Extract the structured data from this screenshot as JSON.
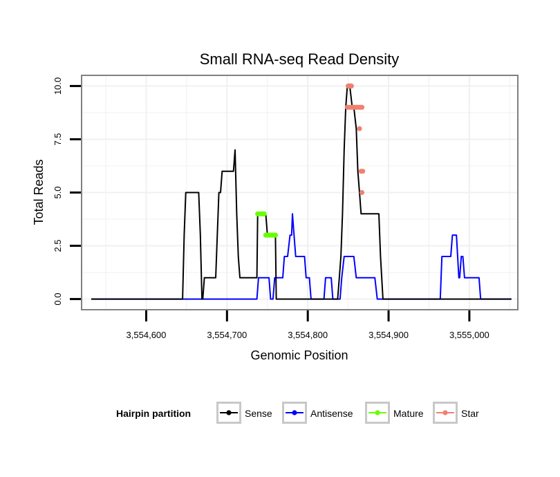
{
  "chart_data": {
    "type": "line",
    "title": "Small RNA-seq Read Density",
    "xlabel": "Genomic Position",
    "ylabel": "Total Reads",
    "xlim": [
      3554520,
      3555060
    ],
    "ylim": [
      -0.5,
      10.5
    ],
    "x_ticks": [
      {
        "value": 3554600,
        "label": "3,554,600"
      },
      {
        "value": 3554700,
        "label": "3,554,700"
      },
      {
        "value": 3554800,
        "label": "3,554,800"
      },
      {
        "value": 3554900,
        "label": "3,554,900"
      },
      {
        "value": 3555000,
        "label": "3,555,000"
      }
    ],
    "y_ticks": [
      {
        "value": 0,
        "label": "0.0"
      },
      {
        "value": 2.5,
        "label": "2.5"
      },
      {
        "value": 5,
        "label": "5.0"
      },
      {
        "value": 7.5,
        "label": "7.5"
      },
      {
        "value": 10,
        "label": "10.0"
      }
    ],
    "grid": true,
    "legend": {
      "title": "Hairpin partition",
      "position": "bottom",
      "entries": [
        {
          "name": "Sense",
          "color": "#000000"
        },
        {
          "name": "Antisense",
          "color": "#0000ff"
        },
        {
          "name": "Mature",
          "color": "#66ff00"
        },
        {
          "name": "Star",
          "color": "#f08070"
        }
      ]
    },
    "series": [
      {
        "name": "Sense",
        "color": "#000000",
        "style": "line",
        "x": [
          3554532,
          3554645,
          3554647,
          3554649,
          3554665,
          3554667,
          3554669,
          3554670,
          3554672,
          3554686,
          3554688,
          3554690,
          3554692,
          3554694,
          3554708,
          3554710,
          3554712,
          3554714,
          3554716,
          3554737,
          3554738,
          3554742,
          3554748,
          3554750,
          3554752,
          3554754,
          3554760,
          3554761,
          3554763,
          3554837,
          3554839,
          3554841,
          3554843,
          3554845,
          3554847,
          3554849,
          3554852,
          3554855,
          3554857,
          3554860,
          3554862,
          3554864,
          3554866,
          3554868,
          3554870,
          3554872,
          3554888,
          3554890,
          3554893,
          3555052
        ],
        "y": [
          0,
          0,
          3,
          5,
          5,
          3,
          0,
          0,
          1,
          1,
          3,
          5,
          5,
          6,
          6,
          7,
          4,
          2,
          1,
          1,
          4,
          4,
          4,
          3,
          3,
          3,
          3,
          0,
          0,
          0,
          1,
          2,
          4,
          7,
          9,
          10,
          10,
          9,
          9,
          8,
          6,
          5,
          4,
          4,
          4,
          4,
          4,
          2,
          0,
          0
        ]
      },
      {
        "name": "Antisense",
        "color": "#0000ff",
        "style": "line",
        "x": [
          3554532,
          3554737,
          3554739,
          3554752,
          3554754,
          3554757,
          3554759,
          3554769,
          3554771,
          3554775,
          3554778,
          3554780,
          3554781,
          3554783,
          3554785,
          3554787,
          3554796,
          3554798,
          3554802,
          3554804,
          3554806,
          3554820,
          3554822,
          3554824,
          3554826,
          3554829,
          3554831,
          3554840,
          3554842,
          3554845,
          3554857,
          3554860,
          3554883,
          3554886,
          3554888,
          3554964,
          3554966,
          3554977,
          3554979,
          3554984,
          3554987,
          3554988,
          3554990,
          3554992,
          3554994,
          3555012,
          3555014,
          3555052
        ],
        "y": [
          0,
          0,
          1,
          1,
          0,
          0,
          1,
          1,
          2,
          2,
          3,
          3,
          4,
          3,
          2,
          2,
          2,
          1,
          1,
          0,
          0,
          0,
          1,
          1,
          1,
          1,
          0,
          0,
          1,
          2,
          2,
          1,
          1,
          0,
          0,
          0,
          2,
          2,
          3,
          3,
          1,
          1,
          2,
          2,
          1,
          1,
          0,
          0
        ]
      },
      {
        "name": "Mature",
        "color": "#66ff00",
        "style": "points",
        "x": [
          3554738,
          3554740,
          3554742,
          3554744,
          3554746,
          3554748,
          3554750,
          3554752,
          3554754,
          3554756,
          3554758,
          3554760
        ],
        "y": [
          4,
          4,
          4,
          4,
          4,
          3,
          3,
          3,
          3,
          3,
          3,
          3
        ]
      },
      {
        "name": "Star",
        "color": "#f08070",
        "style": "points",
        "x": [
          3554850,
          3554851,
          3554852,
          3554853,
          3554854,
          3554849,
          3554852,
          3554855,
          3554857,
          3554859,
          3554861,
          3554863,
          3554865,
          3554867,
          3554864,
          3554866,
          3554868,
          3554867
        ],
        "y": [
          10,
          10,
          10,
          10,
          10,
          9,
          9,
          9,
          9,
          9,
          9,
          9,
          9,
          9,
          8,
          6,
          6,
          5
        ]
      }
    ]
  }
}
